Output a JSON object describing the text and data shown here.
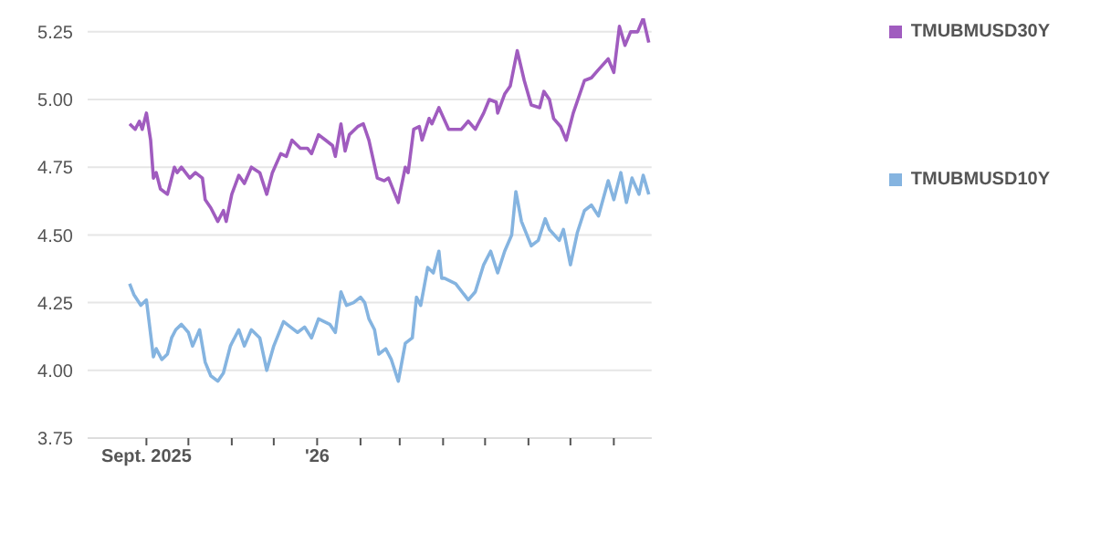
{
  "chart_data": {
    "type": "line",
    "xlim": [
      "2025-07-21",
      "2026-08-28"
    ],
    "ylim": [
      3.75,
      5.3
    ],
    "yticks": [
      3.75,
      {
        "value": 4,
        "label": "4.00"
      },
      4.25,
      {
        "value": 4.5,
        "label": "4.50"
      },
      4.75,
      {
        "value": 5,
        "label": "5.00"
      },
      5.25
    ],
    "xticks": [
      {
        "value": "2025-09-01",
        "label": "Sept. 2025"
      },
      {
        "value": "2025-10-01",
        "label": null
      },
      {
        "value": "2025-11-01",
        "label": null
      },
      {
        "value": "2025-12-01",
        "label": null
      },
      {
        "value": "2026-01-01",
        "label": "'26"
      },
      {
        "value": "2026-02-01",
        "label": null
      },
      {
        "value": "2026-03-01",
        "label": null
      },
      {
        "value": "2026-04-01",
        "label": null
      },
      {
        "value": "2026-05-01",
        "label": null
      },
      {
        "value": "2026-06-01",
        "label": null
      },
      {
        "value": "2026-07-01",
        "label": null
      },
      {
        "value": "2026-08-01",
        "label": null
      }
    ],
    "grid": "y",
    "legend": "right",
    "marker": "none",
    "line_style": "solid",
    "series": [
      {
        "name": "TMUBMUSD30Y",
        "color": "#a05cbf",
        "x": [
          "2025-08-20",
          "2025-08-24",
          "2025-08-27",
          "2025-08-29",
          "2025-09-01",
          "2025-09-04",
          "2025-09-06",
          "2025-09-08",
          "2025-09-11",
          "2025-09-16",
          "2025-09-21",
          "2025-09-23",
          "2025-09-26",
          "2025-10-02",
          "2025-10-06",
          "2025-10-11",
          "2025-10-13",
          "2025-10-17",
          "2025-10-22",
          "2025-10-26",
          "2025-10-28",
          "2025-11-01",
          "2025-11-06",
          "2025-11-10",
          "2025-11-15",
          "2025-11-21",
          "2025-11-26",
          "2025-11-30",
          "2025-12-06",
          "2025-12-10",
          "2025-12-14",
          "2025-12-20",
          "2025-12-25",
          "2025-12-28",
          "2026-01-02",
          "2026-01-07",
          "2026-01-12",
          "2026-01-14",
          "2026-01-18",
          "2026-01-21",
          "2026-01-24",
          "2026-01-30",
          "2026-02-03",
          "2026-02-07",
          "2026-02-13",
          "2026-02-18",
          "2026-02-21",
          "2026-02-28",
          "2026-03-01",
          "2026-03-05",
          "2026-03-07",
          "2026-03-11",
          "2026-03-15",
          "2026-03-17",
          "2026-03-22",
          "2026-03-24",
          "2026-03-29",
          "2026-04-05",
          "2026-04-14",
          "2026-04-19",
          "2026-04-24",
          "2026-04-30",
          "2026-05-04",
          "2026-05-09",
          "2026-05-10",
          "2026-05-15",
          "2026-05-19",
          "2026-05-24",
          "2026-05-29",
          "2026-06-03",
          "2026-06-09",
          "2026-06-12",
          "2026-06-16",
          "2026-06-19",
          "2026-06-24",
          "2026-06-28",
          "2026-07-03",
          "2026-07-11",
          "2026-07-16",
          "2026-07-21",
          "2026-07-28",
          "2026-08-01",
          "2026-08-05",
          "2026-08-09",
          "2026-08-13",
          "2026-08-18",
          "2026-08-22",
          "2026-08-26"
        ],
        "values": [
          4.91,
          4.89,
          4.92,
          4.89,
          4.95,
          4.85,
          4.71,
          4.73,
          4.67,
          4.65,
          4.75,
          4.73,
          4.75,
          4.71,
          4.73,
          4.71,
          4.63,
          4.6,
          4.55,
          4.59,
          4.55,
          4.65,
          4.72,
          4.69,
          4.75,
          4.73,
          4.65,
          4.73,
          4.8,
          4.79,
          4.85,
          4.82,
          4.82,
          4.8,
          4.87,
          4.85,
          4.83,
          4.79,
          4.91,
          4.81,
          4.87,
          4.9,
          4.91,
          4.85,
          4.71,
          4.7,
          4.71,
          4.62,
          4.65,
          4.75,
          4.73,
          4.89,
          4.9,
          4.85,
          4.93,
          4.91,
          4.97,
          4.89,
          4.89,
          4.92,
          4.89,
          4.95,
          5,
          4.99,
          4.95,
          5.02,
          5.05,
          5.18,
          5.07,
          4.98,
          4.97,
          5.03,
          5,
          4.93,
          4.9,
          4.85,
          4.95,
          5.07,
          5.08,
          5.11,
          5.15,
          5.1,
          5.27,
          5.2,
          5.25,
          5.25,
          5.3,
          5.21
        ]
      },
      {
        "name": "TMUBMUSD10Y",
        "color": "#85b4e0",
        "x": [
          "2025-08-20",
          "2025-08-23",
          "2025-08-28",
          "2025-09-01",
          "2025-09-06",
          "2025-09-08",
          "2025-09-12",
          "2025-09-16",
          "2025-09-19",
          "2025-09-22",
          "2025-09-26",
          "2025-10-01",
          "2025-10-04",
          "2025-10-09",
          "2025-10-13",
          "2025-10-17",
          "2025-10-22",
          "2025-10-26",
          "2025-10-31",
          "2025-11-06",
          "2025-11-10",
          "2025-11-15",
          "2025-11-21",
          "2025-11-26",
          "2025-12-01",
          "2025-12-08",
          "2025-12-13",
          "2025-12-18",
          "2025-12-23",
          "2025-12-28",
          "2026-01-02",
          "2026-01-10",
          "2026-01-14",
          "2026-01-18",
          "2026-01-22",
          "2026-01-27",
          "2026-02-01",
          "2026-02-04",
          "2026-02-07",
          "2026-02-11",
          "2026-02-14",
          "2026-02-19",
          "2026-02-23",
          "2026-02-28",
          "2026-03-05",
          "2026-03-10",
          "2026-03-13",
          "2026-03-16",
          "2026-03-21",
          "2026-03-25",
          "2026-03-29",
          "2026-03-31",
          "2026-04-02",
          "2026-04-10",
          "2026-04-19",
          "2026-04-24",
          "2026-04-30",
          "2026-05-05",
          "2026-05-10",
          "2026-05-15",
          "2026-05-20",
          "2026-05-23",
          "2026-05-27",
          "2026-06-03",
          "2026-06-08",
          "2026-06-13",
          "2026-06-16",
          "2026-06-23",
          "2026-06-26",
          "2026-07-01",
          "2026-07-06",
          "2026-07-11",
          "2026-07-16",
          "2026-07-21",
          "2026-07-28",
          "2026-08-01",
          "2026-08-06",
          "2026-08-10",
          "2026-08-14",
          "2026-08-19",
          "2026-08-22",
          "2026-08-26"
        ],
        "values": [
          4.32,
          4.28,
          4.24,
          4.26,
          4.05,
          4.08,
          4.04,
          4.06,
          4.12,
          4.15,
          4.17,
          4.14,
          4.09,
          4.15,
          4.03,
          3.98,
          3.96,
          3.99,
          4.09,
          4.15,
          4.09,
          4.15,
          4.12,
          4,
          4.09,
          4.18,
          4.16,
          4.14,
          4.16,
          4.12,
          4.19,
          4.17,
          4.14,
          4.29,
          4.24,
          4.25,
          4.27,
          4.25,
          4.19,
          4.15,
          4.06,
          4.08,
          4.04,
          3.96,
          4.1,
          4.12,
          4.27,
          4.24,
          4.38,
          4.36,
          4.44,
          4.34,
          4.34,
          4.32,
          4.26,
          4.29,
          4.39,
          4.44,
          4.36,
          4.44,
          4.5,
          4.66,
          4.55,
          4.46,
          4.48,
          4.56,
          4.52,
          4.48,
          4.52,
          4.39,
          4.51,
          4.59,
          4.61,
          4.57,
          4.7,
          4.63,
          4.73,
          4.62,
          4.71,
          4.65,
          4.72,
          4.65
        ]
      }
    ]
  }
}
